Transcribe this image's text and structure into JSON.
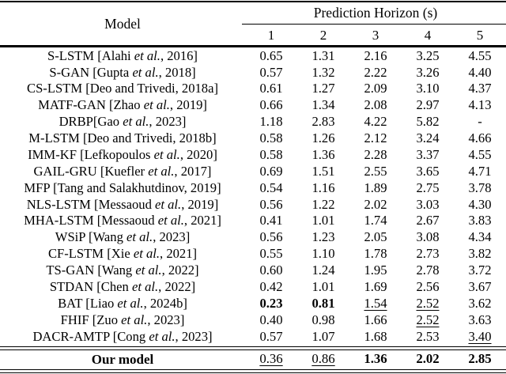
{
  "table": {
    "header": {
      "model_label": "Model",
      "group_label": "Prediction Horizon (s)",
      "horizons": [
        "1",
        "2",
        "3",
        "4",
        "5"
      ]
    },
    "rows": [
      {
        "name": [
          {
            "t": "S-LSTM [Alahi ",
            "i": false
          },
          {
            "t": "et al.",
            "i": true
          },
          {
            "t": ", 2016]",
            "i": false
          }
        ],
        "vals": [
          "0.65",
          "1.31",
          "2.16",
          "3.25",
          "4.55"
        ],
        "b": [],
        "u": []
      },
      {
        "name": [
          {
            "t": "S-GAN [Gupta ",
            "i": false
          },
          {
            "t": "et al.",
            "i": true
          },
          {
            "t": ", 2018]",
            "i": false
          }
        ],
        "vals": [
          "0.57",
          "1.32",
          "2.22",
          "3.26",
          "4.40"
        ],
        "b": [],
        "u": []
      },
      {
        "name": [
          {
            "t": "CS-LSTM [Deo and Trivedi, 2018a]",
            "i": false
          }
        ],
        "vals": [
          "0.61",
          "1.27",
          "2.09",
          "3.10",
          "4.37"
        ],
        "b": [],
        "u": []
      },
      {
        "name": [
          {
            "t": "MATF-GAN [Zhao ",
            "i": false
          },
          {
            "t": "et al.",
            "i": true
          },
          {
            "t": ", 2019]",
            "i": false
          }
        ],
        "vals": [
          "0.66",
          "1.34",
          "2.08",
          "2.97",
          "4.13"
        ],
        "b": [],
        "u": []
      },
      {
        "name": [
          {
            "t": "DRBP[Gao ",
            "i": false
          },
          {
            "t": "et al.",
            "i": true
          },
          {
            "t": ", 2023]",
            "i": false
          }
        ],
        "vals": [
          "1.18",
          "2.83",
          "4.22",
          "5.82",
          "-"
        ],
        "b": [],
        "u": []
      },
      {
        "name": [
          {
            "t": "M-LSTM [Deo and Trivedi, 2018b]",
            "i": false
          }
        ],
        "vals": [
          "0.58",
          "1.26",
          "2.12",
          "3.24",
          "4.66"
        ],
        "b": [],
        "u": []
      },
      {
        "name": [
          {
            "t": "IMM-KF [Lefkopoulos ",
            "i": false
          },
          {
            "t": "et al.",
            "i": true
          },
          {
            "t": ", 2020]",
            "i": false
          }
        ],
        "vals": [
          "0.58",
          "1.36",
          "2.28",
          "3.37",
          "4.55"
        ],
        "b": [],
        "u": []
      },
      {
        "name": [
          {
            "t": "GAIL-GRU [Kuefler ",
            "i": false
          },
          {
            "t": "et al.",
            "i": true
          },
          {
            "t": ", 2017]",
            "i": false
          }
        ],
        "vals": [
          "0.69",
          "1.51",
          "2.55",
          "3.65",
          "4.71"
        ],
        "b": [],
        "u": []
      },
      {
        "name": [
          {
            "t": "MFP [Tang and Salakhutdinov, 2019]",
            "i": false
          }
        ],
        "vals": [
          "0.54",
          "1.16",
          "1.89",
          "2.75",
          "3.78"
        ],
        "b": [],
        "u": []
      },
      {
        "name": [
          {
            "t": "NLS-LSTM [Messaoud ",
            "i": false
          },
          {
            "t": "et al.",
            "i": true
          },
          {
            "t": ", 2019]",
            "i": false
          }
        ],
        "vals": [
          "0.56",
          "1.22",
          "2.02",
          "3.03",
          "4.30"
        ],
        "b": [],
        "u": []
      },
      {
        "name": [
          {
            "t": "MHA-LSTM [Messaoud ",
            "i": false
          },
          {
            "t": "et al.",
            "i": true
          },
          {
            "t": ", 2021]",
            "i": false
          }
        ],
        "vals": [
          "0.41",
          "1.01",
          "1.74",
          "2.67",
          "3.83"
        ],
        "b": [],
        "u": []
      },
      {
        "name": [
          {
            "t": "WSiP [Wang ",
            "i": false
          },
          {
            "t": "et al.",
            "i": true
          },
          {
            "t": ", 2023]",
            "i": false
          }
        ],
        "vals": [
          "0.56",
          "1.23",
          "2.05",
          "3.08",
          "4.34"
        ],
        "b": [],
        "u": []
      },
      {
        "name": [
          {
            "t": "CF-LSTM [Xie ",
            "i": false
          },
          {
            "t": "et al.",
            "i": true
          },
          {
            "t": ", 2021]",
            "i": false
          }
        ],
        "vals": [
          "0.55",
          "1.10",
          "1.78",
          "2.73",
          "3.82"
        ],
        "b": [],
        "u": []
      },
      {
        "name": [
          {
            "t": "TS-GAN [Wang ",
            "i": false
          },
          {
            "t": "et al.",
            "i": true
          },
          {
            "t": ", 2022]",
            "i": false
          }
        ],
        "vals": [
          "0.60",
          "1.24",
          "1.95",
          "2.78",
          "3.72"
        ],
        "b": [],
        "u": []
      },
      {
        "name": [
          {
            "t": "STDAN [Chen ",
            "i": false
          },
          {
            "t": "et al.",
            "i": true
          },
          {
            "t": ", 2022]",
            "i": false
          }
        ],
        "vals": [
          "0.42",
          "1.01",
          "1.69",
          "2.56",
          "3.67"
        ],
        "b": [],
        "u": []
      },
      {
        "name": [
          {
            "t": "BAT [Liao ",
            "i": false
          },
          {
            "t": "et al.",
            "i": true
          },
          {
            "t": ", 2024b]",
            "i": false
          }
        ],
        "vals": [
          "0.23",
          "0.81",
          "1.54",
          "2.52",
          "3.62"
        ],
        "b": [
          0,
          1
        ],
        "u": [
          2,
          3
        ]
      },
      {
        "name": [
          {
            "t": "FHIF [Zuo ",
            "i": false
          },
          {
            "t": "et al.",
            "i": true
          },
          {
            "t": ", 2023]",
            "i": false
          }
        ],
        "vals": [
          "0.40",
          "0.98",
          "1.66",
          "2.52",
          "3.63"
        ],
        "b": [],
        "u": [
          3
        ]
      },
      {
        "name": [
          {
            "t": "DACR-AMTP [Cong ",
            "i": false
          },
          {
            "t": "et al.",
            "i": true
          },
          {
            "t": ", 2023]",
            "i": false
          }
        ],
        "vals": [
          "0.57",
          "1.07",
          "1.68",
          "2.53",
          "3.40"
        ],
        "b": [],
        "u": [
          4
        ]
      }
    ],
    "footer_row": {
      "name": [
        {
          "t": "Our model",
          "i": false
        }
      ],
      "vals": [
        "0.36",
        "0.86",
        "1.36",
        "2.02",
        "2.85"
      ],
      "b": [
        2,
        3,
        4
      ],
      "u": [
        0,
        1
      ]
    }
  }
}
